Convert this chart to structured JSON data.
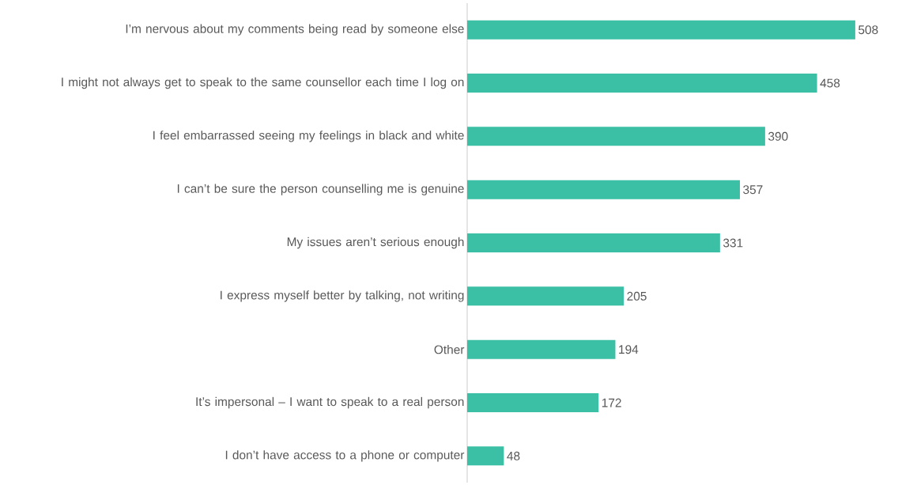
{
  "chart_data": {
    "type": "bar",
    "orientation": "horizontal",
    "categories": [
      "I’m nervous about my comments being read by someone else",
      "I might not always get to speak to the same counsellor each time I log on",
      "I feel embarrassed seeing my feelings in black and white",
      "I can’t be sure the person counselling me is genuine",
      "My issues aren’t serious enough",
      "I express myself better by talking, not writing",
      "Other",
      "It’s impersonal – I want to speak to a real person",
      "I don’t have access to a phone or computer"
    ],
    "values": [
      508,
      458,
      390,
      357,
      331,
      205,
      194,
      172,
      48
    ],
    "color": "#3bbfa5",
    "data_labels": true
  }
}
